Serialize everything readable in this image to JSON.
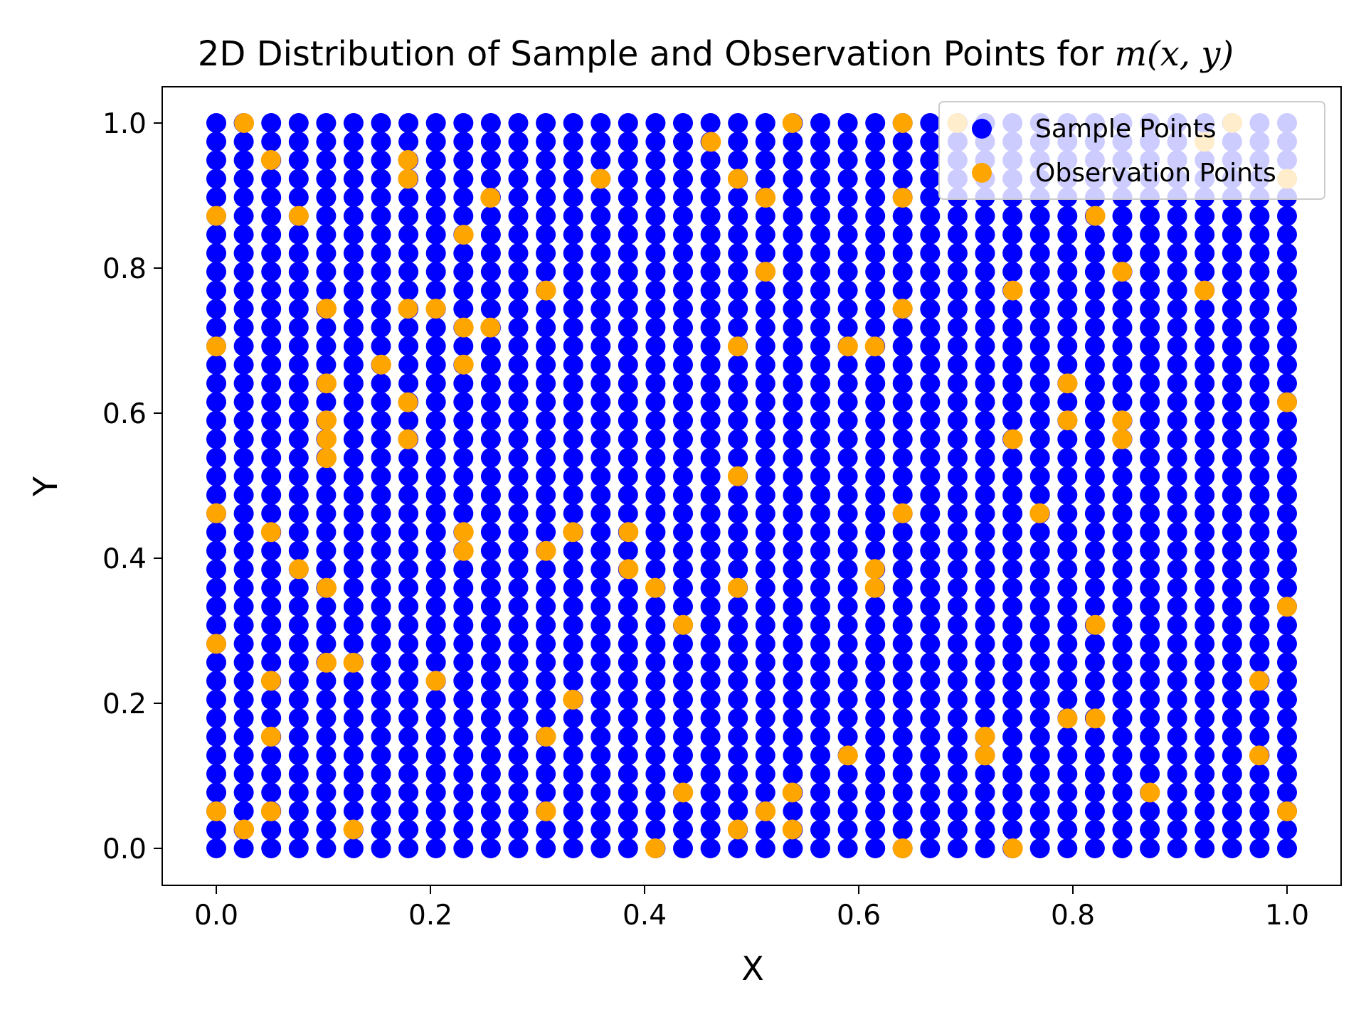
{
  "chart_data": {
    "type": "scatter",
    "title": "2D Distribution of Sample and Observation Points for ",
    "title_math": "m(x, y)",
    "xlabel": "X",
    "ylabel": "Y",
    "xlim": [
      -0.05,
      1.05
    ],
    "ylim": [
      -0.05,
      1.05
    ],
    "xticks": [
      "0.0",
      "0.2",
      "0.4",
      "0.6",
      "0.8",
      "1.0"
    ],
    "yticks": [
      "0.0",
      "0.2",
      "0.4",
      "0.6",
      "0.8",
      "1.0"
    ],
    "grid": false,
    "legend_position": "top-right",
    "sample_grid": {
      "x_count": 40,
      "y_count": 40,
      "min": 0,
      "max": 1
    },
    "series": [
      {
        "name": "Sample Points",
        "color": "#0000ff",
        "points": "uniform 40x40 grid over [0,1]x[0,1]"
      },
      {
        "name": "Observation Points",
        "color": "#ffa500",
        "points": [
          [
            0.0,
            0.872
          ],
          [
            0.0,
            0.692
          ],
          [
            0.0,
            0.462
          ],
          [
            0.0,
            0.282
          ],
          [
            0.0,
            0.051
          ],
          [
            0.026,
            1.0
          ],
          [
            0.026,
            0.026
          ],
          [
            0.051,
            0.949
          ],
          [
            0.051,
            0.436
          ],
          [
            0.051,
            0.231
          ],
          [
            0.051,
            0.154
          ],
          [
            0.051,
            0.051
          ],
          [
            0.077,
            0.872
          ],
          [
            0.077,
            0.385
          ],
          [
            0.103,
            0.744
          ],
          [
            0.103,
            0.641
          ],
          [
            0.103,
            0.59
          ],
          [
            0.103,
            0.564
          ],
          [
            0.103,
            0.538
          ],
          [
            0.103,
            0.359
          ],
          [
            0.103,
            0.256
          ],
          [
            0.128,
            0.256
          ],
          [
            0.128,
            0.026
          ],
          [
            0.154,
            0.667
          ],
          [
            0.179,
            0.949
          ],
          [
            0.179,
            0.923
          ],
          [
            0.179,
            0.744
          ],
          [
            0.179,
            0.615
          ],
          [
            0.179,
            0.564
          ],
          [
            0.205,
            0.744
          ],
          [
            0.205,
            0.231
          ],
          [
            0.231,
            0.846
          ],
          [
            0.231,
            0.718
          ],
          [
            0.231,
            0.667
          ],
          [
            0.231,
            0.436
          ],
          [
            0.231,
            0.41
          ],
          [
            0.256,
            0.897
          ],
          [
            0.256,
            0.718
          ],
          [
            0.308,
            0.769
          ],
          [
            0.308,
            0.41
          ],
          [
            0.308,
            0.154
          ],
          [
            0.308,
            0.051
          ],
          [
            0.333,
            0.436
          ],
          [
            0.333,
            0.205
          ],
          [
            0.359,
            0.923
          ],
          [
            0.385,
            0.436
          ],
          [
            0.385,
            0.385
          ],
          [
            0.41,
            0.359
          ],
          [
            0.41,
            0.0
          ],
          [
            0.436,
            0.308
          ],
          [
            0.436,
            0.077
          ],
          [
            0.462,
            0.974
          ],
          [
            0.487,
            0.923
          ],
          [
            0.487,
            0.692
          ],
          [
            0.487,
            0.513
          ],
          [
            0.487,
            0.359
          ],
          [
            0.487,
            0.026
          ],
          [
            0.513,
            0.897
          ],
          [
            0.513,
            0.795
          ],
          [
            0.513,
            0.051
          ],
          [
            0.538,
            1.0
          ],
          [
            0.538,
            0.077
          ],
          [
            0.538,
            0.026
          ],
          [
            0.59,
            0.692
          ],
          [
            0.59,
            0.128
          ],
          [
            0.615,
            0.692
          ],
          [
            0.615,
            0.385
          ],
          [
            0.615,
            0.359
          ],
          [
            0.641,
            1.0
          ],
          [
            0.641,
            0.897
          ],
          [
            0.641,
            0.744
          ],
          [
            0.641,
            0.462
          ],
          [
            0.641,
            0.0
          ],
          [
            0.692,
            1.0
          ],
          [
            0.718,
            0.154
          ],
          [
            0.718,
            0.128
          ],
          [
            0.744,
            0.769
          ],
          [
            0.744,
            0.564
          ],
          [
            0.744,
            0.0
          ],
          [
            0.769,
            0.462
          ],
          [
            0.795,
            0.641
          ],
          [
            0.795,
            0.59
          ],
          [
            0.795,
            0.179
          ],
          [
            0.821,
            0.872
          ],
          [
            0.821,
            0.308
          ],
          [
            0.821,
            0.179
          ],
          [
            0.846,
            0.795
          ],
          [
            0.846,
            0.59
          ],
          [
            0.846,
            0.564
          ],
          [
            0.872,
            0.077
          ],
          [
            0.923,
            0.974
          ],
          [
            0.923,
            0.769
          ],
          [
            0.949,
            1.0
          ],
          [
            0.974,
            0.231
          ],
          [
            0.974,
            0.128
          ],
          [
            1.0,
            0.923
          ],
          [
            1.0,
            0.615
          ],
          [
            1.0,
            0.333
          ],
          [
            1.0,
            0.051
          ]
        ]
      }
    ]
  }
}
